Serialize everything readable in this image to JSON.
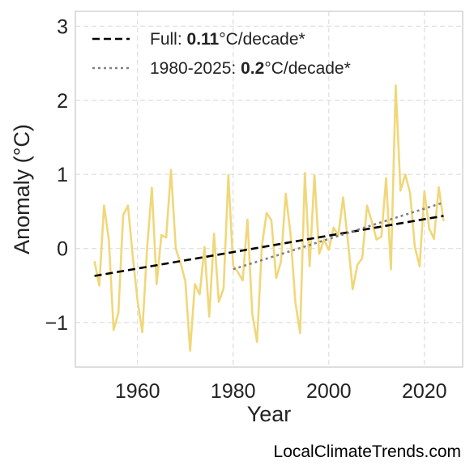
{
  "chart_data": {
    "type": "line",
    "xlabel": "Year",
    "ylabel": "Anomaly (°C)",
    "xlim": [
      1947,
      2028
    ],
    "ylim": [
      -1.6,
      3.2
    ],
    "xticks": [
      1960,
      1980,
      2000,
      2020
    ],
    "xtick_labels": [
      "1960",
      "1980",
      "2000",
      "2020"
    ],
    "yticks": [
      -1,
      0,
      1,
      2,
      3
    ],
    "ytick_labels": [
      "−1",
      "0",
      "1",
      "2",
      "3"
    ],
    "grid": true,
    "legend_position": "top-left",
    "series": [
      {
        "style": "solid",
        "color": "#f0d77a",
        "x": [
          1951,
          1952,
          1953,
          1954,
          1955,
          1956,
          1957,
          1958,
          1959,
          1960,
          1961,
          1962,
          1963,
          1964,
          1965,
          1966,
          1967,
          1968,
          1969,
          1970,
          1971,
          1972,
          1973,
          1974,
          1975,
          1976,
          1977,
          1978,
          1979,
          1980,
          1981,
          1982,
          1983,
          1984,
          1985,
          1986,
          1987,
          1988,
          1989,
          1990,
          1991,
          1992,
          1993,
          1994,
          1995,
          1996,
          1997,
          1998,
          1999,
          2000,
          2001,
          2002,
          2003,
          2004,
          2005,
          2006,
          2007,
          2008,
          2009,
          2010,
          2011,
          2012,
          2013,
          2014,
          2015,
          2016,
          2017,
          2018,
          2019,
          2020,
          2021,
          2022,
          2023,
          2024
        ],
        "y": [
          -0.17,
          -0.5,
          0.58,
          0.12,
          -1.1,
          -0.87,
          0.45,
          0.58,
          -0.1,
          -0.7,
          -1.13,
          0.0,
          0.82,
          -0.48,
          0.18,
          0.15,
          1.06,
          0.0,
          -0.2,
          -0.44,
          -1.38,
          -0.48,
          -0.62,
          0.02,
          -0.92,
          0.2,
          -0.72,
          -0.54,
          0.99,
          -0.23,
          -0.32,
          -0.43,
          0.39,
          -0.88,
          -1.26,
          0.03,
          0.48,
          0.38,
          -0.4,
          -0.18,
          0.74,
          0.2,
          -0.72,
          -1.14,
          1.02,
          -0.24,
          0.99,
          -0.07,
          0.12,
          -0.02,
          0.28,
          0.18,
          0.69,
          0.1,
          -0.55,
          -0.22,
          -0.13,
          0.58,
          0.36,
          0.12,
          0.16,
          0.95,
          -0.28,
          2.2,
          0.78,
          1.0,
          0.75,
          0.02,
          -0.24,
          0.77,
          0.27,
          0.13,
          0.83,
          0.37
        ]
      },
      {
        "name": "Full",
        "style": "dashed",
        "color": "#000000",
        "x": [
          1951,
          2024
        ],
        "y": [
          -0.37,
          0.44
        ]
      },
      {
        "name": "1980-2025",
        "style": "dotted",
        "color": "#808080",
        "x": [
          1980,
          2024
        ],
        "y": [
          -0.28,
          0.62
        ]
      }
    ],
    "legend": [
      {
        "prefix": "Full: ",
        "value": "0.11",
        "suffix": "°C/decade*",
        "style": "dashed",
        "color": "#000000"
      },
      {
        "prefix": "1980-2025: ",
        "value": "0.2",
        "suffix": "°C/decade*",
        "style": "dotted",
        "color": "#808080"
      }
    ]
  },
  "watermark": "LocalClimateTrends.com"
}
